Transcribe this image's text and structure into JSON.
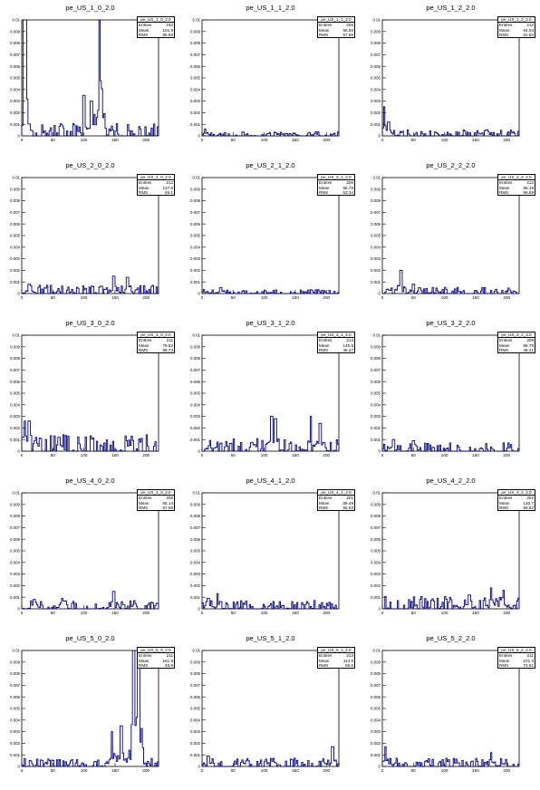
{
  "colors": {
    "line": "#000080",
    "frame": "#000000"
  },
  "chart_data": [
    {
      "type": "line",
      "title": "pe_US_1_0_2.0",
      "xlim": [
        0,
        220
      ],
      "ylim": [
        0,
        0.01
      ],
      "x_ticks": [
        "0",
        "50",
        "100",
        "150",
        "200"
      ],
      "y_ticks": [
        "0",
        "0.001",
        "0.002",
        "0.003",
        "0.004",
        "0.005",
        "0.006",
        "0.007",
        "0.008",
        "0.009",
        "0.01"
      ],
      "stats": {
        "name": "pe_US_1_0_2.0",
        "entries": "192",
        "mean": "101.9",
        "rms": "65.59"
      },
      "peaks": [
        {
          "x": 3,
          "y": 0.0105
        },
        {
          "x": 6,
          "y": 0.0105
        },
        {
          "x": 100,
          "y": 0.0035
        },
        {
          "x": 112,
          "y": 0.003
        },
        {
          "x": 125,
          "y": 0.0105
        }
      ],
      "baseline": 0.0006
    },
    {
      "type": "line",
      "title": "pe_US_1_1_2.0",
      "xlim": [
        0,
        220
      ],
      "ylim": [
        0,
        0.01
      ],
      "x_ticks": [
        "0",
        "50",
        "100",
        "150",
        "200"
      ],
      "y_ticks": [
        "0",
        "0.001",
        "0.002",
        "0.003",
        "0.004",
        "0.005",
        "0.006",
        "0.007",
        "0.008",
        "0.009",
        "0.01"
      ],
      "stats": {
        "name": "pe_US_1_1_2.0",
        "entries": "206",
        "mean": "56.65",
        "rms": "67.86"
      },
      "peaks": [
        {
          "x": 5,
          "y": 0.0006
        }
      ],
      "baseline": 0.0002
    },
    {
      "type": "line",
      "title": "pe_US_1_2_2.0",
      "xlim": [
        0,
        220
      ],
      "ylim": [
        0,
        0.01
      ],
      "x_ticks": [
        "0",
        "50",
        "100",
        "150",
        "200"
      ],
      "y_ticks": [
        "0",
        "0.001",
        "0.002",
        "0.003",
        "0.004",
        "0.005",
        "0.006",
        "0.007",
        "0.008",
        "0.009",
        "0.01"
      ],
      "stats": {
        "name": "pe_US_1_2_2.0",
        "entries": "212",
        "mean": "64.04",
        "rms": "61.84"
      },
      "peaks": [
        {
          "x": 3,
          "y": 0.0025
        },
        {
          "x": 10,
          "y": 0.0012
        }
      ],
      "baseline": 0.0003
    },
    {
      "type": "line",
      "title": "pe_US_2_0_2.0",
      "xlim": [
        0,
        220
      ],
      "ylim": [
        0,
        0.01
      ],
      "x_ticks": [
        "0",
        "50",
        "100",
        "150",
        "200"
      ],
      "y_ticks": [
        "0",
        "0.001",
        "0.002",
        "0.003",
        "0.004",
        "0.005",
        "0.006",
        "0.007",
        "0.008",
        "0.009",
        "0.01"
      ],
      "stats": {
        "name": "pe_US_2_0_2.0",
        "entries": "212",
        "mean": "127.8",
        "rms": "65.1"
      },
      "peaks": [
        {
          "x": 148,
          "y": 0.0015
        },
        {
          "x": 170,
          "y": 0.0014
        },
        {
          "x": 12,
          "y": 0.0008
        }
      ],
      "baseline": 0.0004
    },
    {
      "type": "line",
      "title": "pe_US_2_1_2.0",
      "xlim": [
        0,
        220
      ],
      "ylim": [
        0,
        0.01
      ],
      "x_ticks": [
        "0",
        "50",
        "100",
        "150",
        "200"
      ],
      "y_ticks": [
        "0",
        "0.001",
        "0.002",
        "0.003",
        "0.004",
        "0.005",
        "0.006",
        "0.007",
        "0.008",
        "0.009",
        "0.01"
      ],
      "stats": {
        "name": "pe_US_2_1_2.0",
        "entries": "206",
        "mean": "56.79",
        "rms": "63.34"
      },
      "peaks": [
        {
          "x": 30,
          "y": 0.0005
        }
      ],
      "baseline": 0.0002
    },
    {
      "type": "line",
      "title": "pe_US_2_2_2.0",
      "xlim": [
        0,
        220
      ],
      "ylim": [
        0,
        0.01
      ],
      "x_ticks": [
        "0",
        "50",
        "100",
        "150",
        "200"
      ],
      "y_ticks": [
        "0",
        "0.001",
        "0.002",
        "0.003",
        "0.004",
        "0.005",
        "0.006",
        "0.007",
        "0.008",
        "0.009",
        "0.01"
      ],
      "stats": {
        "name": "pe_US_2_2_2.0",
        "entries": "212",
        "mean": "66.19",
        "rms": "66.69"
      },
      "peaks": [
        {
          "x": 30,
          "y": 0.002
        },
        {
          "x": 50,
          "y": 0.0008
        }
      ],
      "baseline": 0.0003
    },
    {
      "type": "line",
      "title": "pe_US_3_0_2.0",
      "xlim": [
        0,
        220
      ],
      "ylim": [
        0,
        0.01
      ],
      "x_ticks": [
        "0",
        "50",
        "100",
        "150",
        "200"
      ],
      "y_ticks": [
        "0",
        "0.001",
        "0.002",
        "0.003",
        "0.004",
        "0.005",
        "0.006",
        "0.007",
        "0.008",
        "0.009",
        "0.01"
      ],
      "stats": {
        "name": "pe_US_3_0_2.0",
        "entries": "211",
        "mean": "79.62",
        "rms": "58.73"
      },
      "peaks": [
        {
          "x": 5,
          "y": 0.0026
        },
        {
          "x": 12,
          "y": 0.0026
        },
        {
          "x": 60,
          "y": 0.0012
        }
      ],
      "baseline": 0.0008
    },
    {
      "type": "line",
      "title": "pe_US_3_1_2.0",
      "xlim": [
        0,
        220
      ],
      "ylim": [
        0,
        0.01
      ],
      "x_ticks": [
        "0",
        "50",
        "100",
        "150",
        "200"
      ],
      "y_ticks": [
        "0",
        "0.001",
        "0.002",
        "0.003",
        "0.004",
        "0.005",
        "0.006",
        "0.007",
        "0.008",
        "0.009",
        "0.01"
      ],
      "stats": {
        "name": "pe_US_3_1_2.0",
        "entries": "214",
        "mean": "145.8",
        "rms": "48.47"
      },
      "peaks": [
        {
          "x": 112,
          "y": 0.003
        },
        {
          "x": 118,
          "y": 0.0028
        },
        {
          "x": 175,
          "y": 0.003
        },
        {
          "x": 190,
          "y": 0.0024
        }
      ],
      "baseline": 0.0006
    },
    {
      "type": "line",
      "title": "pe_US_3_2_2.0",
      "xlim": [
        0,
        220
      ],
      "ylim": [
        0,
        0.01
      ],
      "x_ticks": [
        "0",
        "50",
        "100",
        "150",
        "200"
      ],
      "y_ticks": [
        "0",
        "0.001",
        "0.002",
        "0.003",
        "0.004",
        "0.005",
        "0.006",
        "0.007",
        "0.008",
        "0.009",
        "0.01"
      ],
      "stats": {
        "name": "pe_US_3_2_2.0",
        "entries": "209",
        "mean": "68.79",
        "rms": "48.21"
      },
      "peaks": [
        {
          "x": 18,
          "y": 0.001
        },
        {
          "x": 50,
          "y": 0.0009
        }
      ],
      "baseline": 0.0004
    },
    {
      "type": "line",
      "title": "pe_US_4_0_2.0",
      "xlim": [
        0,
        220
      ],
      "ylim": [
        0,
        0.01
      ],
      "x_ticks": [
        "0",
        "50",
        "100",
        "150",
        "200"
      ],
      "y_ticks": [
        "0",
        "0.001",
        "0.002",
        "0.003",
        "0.004",
        "0.005",
        "0.006",
        "0.007",
        "0.008",
        "0.009",
        "0.01"
      ],
      "stats": {
        "name": "pe_US_4_0_2.0",
        "entries": "206",
        "mean": "66.14",
        "rms": "57.58"
      },
      "peaks": [
        {
          "x": 148,
          "y": 0.0015
        },
        {
          "x": 20,
          "y": 0.0008
        },
        {
          "x": 65,
          "y": 0.0009
        }
      ],
      "baseline": 0.0004
    },
    {
      "type": "line",
      "title": "pe_US_4_1_2.0",
      "xlim": [
        0,
        220
      ],
      "ylim": [
        0,
        0.01
      ],
      "x_ticks": [
        "0",
        "50",
        "100",
        "150",
        "200"
      ],
      "y_ticks": [
        "0",
        "0.001",
        "0.002",
        "0.003",
        "0.004",
        "0.005",
        "0.006",
        "0.007",
        "0.008",
        "0.009",
        "0.01"
      ],
      "stats": {
        "name": "pe_US_4_1_2.0",
        "entries": "201",
        "mean": "69.49",
        "rms": "65.63"
      },
      "peaks": [
        {
          "x": 25,
          "y": 0.0013
        },
        {
          "x": 10,
          "y": 0.0009
        }
      ],
      "baseline": 0.0004
    },
    {
      "type": "line",
      "title": "pe_US_4_2_2.0",
      "xlim": [
        0,
        220
      ],
      "ylim": [
        0,
        0.01
      ],
      "x_ticks": [
        "0",
        "50",
        "100",
        "150",
        "200"
      ],
      "y_ticks": [
        "0",
        "0.001",
        "0.002",
        "0.003",
        "0.004",
        "0.005",
        "0.006",
        "0.007",
        "0.008",
        "0.009",
        "0.01"
      ],
      "stats": {
        "name": "pe_US_4_2_2.0",
        "entries": "202",
        "mean": "130.7",
        "rms": "56.82"
      },
      "peaks": [
        {
          "x": 175,
          "y": 0.0018
        },
        {
          "x": 195,
          "y": 0.0016
        },
        {
          "x": 140,
          "y": 0.0012
        }
      ],
      "baseline": 0.0006
    },
    {
      "type": "line",
      "title": "pe_US_5_0_2.0",
      "xlim": [
        0,
        220
      ],
      "ylim": [
        0,
        0.01
      ],
      "x_ticks": [
        "0",
        "50",
        "100",
        "150",
        "200"
      ],
      "y_ticks": [
        "0",
        "0.001",
        "0.002",
        "0.003",
        "0.004",
        "0.005",
        "0.006",
        "0.007",
        "0.008",
        "0.009",
        "0.01"
      ],
      "stats": {
        "name": "pe_US_5_0_2.0",
        "entries": "211",
        "mean": "151.9",
        "rms": "46.9"
      },
      "peaks": [
        {
          "x": 145,
          "y": 0.003
        },
        {
          "x": 160,
          "y": 0.0035
        },
        {
          "x": 180,
          "y": 0.0105
        },
        {
          "x": 188,
          "y": 0.0105
        }
      ],
      "baseline": 0.0004
    },
    {
      "type": "line",
      "title": "pe_US_5_1_2.0",
      "xlim": [
        0,
        220
      ],
      "ylim": [
        0,
        0.01
      ],
      "x_ticks": [
        "0",
        "50",
        "100",
        "150",
        "200"
      ],
      "y_ticks": [
        "0",
        "0.001",
        "0.002",
        "0.003",
        "0.004",
        "0.005",
        "0.006",
        "0.007",
        "0.008",
        "0.009",
        "0.01"
      ],
      "stats": {
        "name": "pe_US_5_1_2.0",
        "entries": "213",
        "mean": "114.5",
        "rms": "65.9"
      },
      "peaks": [
        {
          "x": 210,
          "y": 0.0017
        },
        {
          "x": 10,
          "y": 0.0009
        }
      ],
      "baseline": 0.0004
    },
    {
      "type": "line",
      "title": "pe_US_5_2_2.0",
      "xlim": [
        0,
        220
      ],
      "ylim": [
        0,
        0.01
      ],
      "x_ticks": [
        "0",
        "50",
        "100",
        "150",
        "200"
      ],
      "y_ticks": [
        "0",
        "0.001",
        "0.002",
        "0.003",
        "0.004",
        "0.005",
        "0.006",
        "0.007",
        "0.008",
        "0.009",
        "0.01"
      ],
      "stats": {
        "name": "pe_US_5_2_2.0",
        "entries": "211",
        "mean": "101.3",
        "rms": "73.61"
      },
      "peaks": [
        {
          "x": 5,
          "y": 0.0017
        },
        {
          "x": 175,
          "y": 0.0012
        }
      ],
      "baseline": 0.0004
    }
  ],
  "stat_labels": {
    "entries": "Entries",
    "mean": "Mean",
    "rms": "RMS"
  }
}
